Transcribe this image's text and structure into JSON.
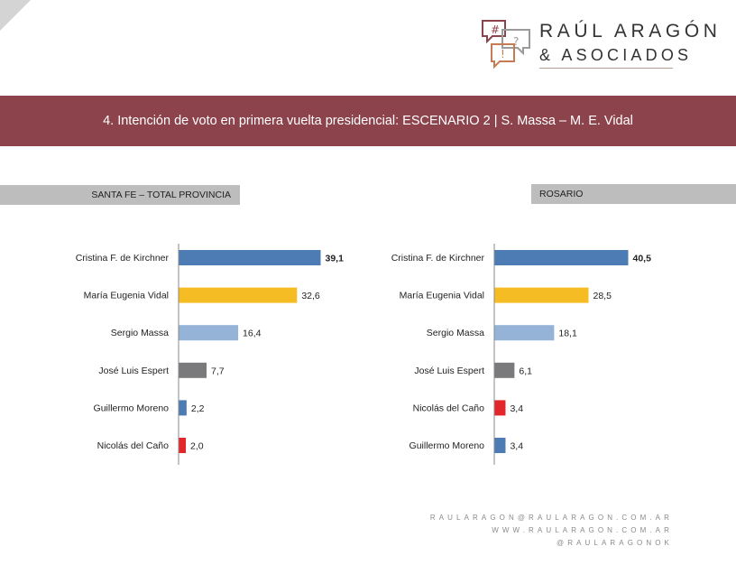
{
  "logo": {
    "name": "RAÚL ARAGÓN",
    "sub": "& ASOCIADOS",
    "glyphs": [
      "#",
      "?",
      "!"
    ],
    "colors": {
      "bubble1": "#8c434b",
      "bubble2": "#9b9b9b",
      "bubble3": "#c57c52"
    }
  },
  "banner": {
    "title": "4. Intención de voto en primera vuelta presidencial: ESCENARIO 2 | S. Massa – M. E. Vidal",
    "color": "#8c434b"
  },
  "panels": [
    {
      "label": "SANTA FE – TOTAL PROVINCIA"
    },
    {
      "label": "ROSARIO"
    }
  ],
  "chart_data": [
    {
      "type": "bar",
      "orientation": "horizontal",
      "title": "SANTA FE – TOTAL PROVINCIA",
      "categories": [
        "Cristina F. de Kirchner",
        "María Eugenia Vidal",
        "Sergio Massa",
        "José Luis Espert",
        "Guillermo Moreno",
        "Nicolás del Caño"
      ],
      "values": [
        39.1,
        32.6,
        16.4,
        7.7,
        2.2,
        2.0
      ],
      "labels": [
        "39,1",
        "32,6",
        "16,4",
        "7,7",
        "2,2",
        "2,0"
      ],
      "colors": [
        "#4d7bb4",
        "#f5bd23",
        "#94b3d7",
        "#7a7a7c",
        "#4d7bb4",
        "#e3262b"
      ],
      "bold_first": true,
      "xlim": [
        0,
        40
      ],
      "grid": false,
      "legend": "none"
    },
    {
      "type": "bar",
      "orientation": "horizontal",
      "title": "ROSARIO",
      "categories": [
        "Cristina F. de Kirchner",
        "María Eugenia Vidal",
        "Sergio Massa",
        "José Luis Espert",
        "Nicolás del Caño",
        "Guillermo Moreno"
      ],
      "values": [
        40.5,
        28.5,
        18.1,
        6.1,
        3.4,
        3.4
      ],
      "labels": [
        "40,5",
        "28,5",
        "18,1",
        "6,1",
        "3,4",
        "3,4"
      ],
      "colors": [
        "#4d7bb4",
        "#f5bd23",
        "#94b3d7",
        "#7a7a7c",
        "#e3262b",
        "#4d7bb4"
      ],
      "bold_first": true,
      "xlim": [
        0,
        40
      ],
      "grid": false,
      "legend": "none"
    }
  ],
  "footer": {
    "email": "RAULARAGON@RAULARAGON.COM.AR",
    "web": "WWW.RAULARAGON.COM.AR",
    "social": "@RAULARAGONOK"
  }
}
